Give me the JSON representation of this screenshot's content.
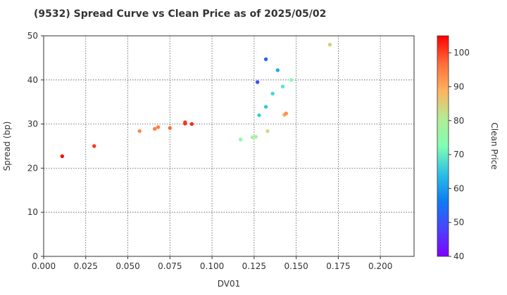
{
  "title": "(9532)   Spread Curve vs Clean Price as of 2025/05/02",
  "chart_data": {
    "type": "scatter",
    "title": "(9532)   Spread Curve vs Clean Price as of 2025/05/02",
    "xlabel": "DV01",
    "ylabel": "Spread (bp)",
    "colorbar_label": "Clean Price",
    "xlim": [
      0.0,
      0.22
    ],
    "ylim": [
      0,
      50
    ],
    "xticks": [
      "0.000",
      "0.025",
      "0.050",
      "0.075",
      "0.100",
      "0.125",
      "0.150",
      "0.175",
      "0.200"
    ],
    "yticks": [
      "0",
      "10",
      "20",
      "30",
      "40",
      "50"
    ],
    "colorbar_range": [
      40,
      105
    ],
    "colorbar_ticks": [
      "40",
      "50",
      "60",
      "70",
      "80",
      "90",
      "100"
    ],
    "colormap": "rainbow",
    "grid": true,
    "points": [
      {
        "x": 0.011,
        "y": 22.7,
        "c": 104
      },
      {
        "x": 0.03,
        "y": 25.0,
        "c": 101
      },
      {
        "x": 0.057,
        "y": 28.4,
        "c": 94
      },
      {
        "x": 0.066,
        "y": 28.9,
        "c": 95
      },
      {
        "x": 0.068,
        "y": 29.3,
        "c": 95
      },
      {
        "x": 0.075,
        "y": 29.1,
        "c": 97
      },
      {
        "x": 0.084,
        "y": 30.1,
        "c": 102
      },
      {
        "x": 0.084,
        "y": 30.4,
        "c": 101
      },
      {
        "x": 0.088,
        "y": 30.0,
        "c": 102
      },
      {
        "x": 0.117,
        "y": 26.5,
        "c": 75
      },
      {
        "x": 0.124,
        "y": 27.0,
        "c": 78
      },
      {
        "x": 0.126,
        "y": 27.1,
        "c": 79
      },
      {
        "x": 0.127,
        "y": 39.5,
        "c": 50
      },
      {
        "x": 0.128,
        "y": 32.0,
        "c": 66
      },
      {
        "x": 0.132,
        "y": 44.7,
        "c": 54
      },
      {
        "x": 0.132,
        "y": 33.9,
        "c": 65
      },
      {
        "x": 0.133,
        "y": 28.4,
        "c": 83
      },
      {
        "x": 0.136,
        "y": 36.9,
        "c": 67
      },
      {
        "x": 0.139,
        "y": 42.2,
        "c": 62
      },
      {
        "x": 0.142,
        "y": 38.5,
        "c": 69
      },
      {
        "x": 0.143,
        "y": 32.1,
        "c": 90
      },
      {
        "x": 0.144,
        "y": 32.4,
        "c": 93
      },
      {
        "x": 0.147,
        "y": 40.0,
        "c": 73
      },
      {
        "x": 0.17,
        "y": 48.0,
        "c": 85
      }
    ]
  }
}
